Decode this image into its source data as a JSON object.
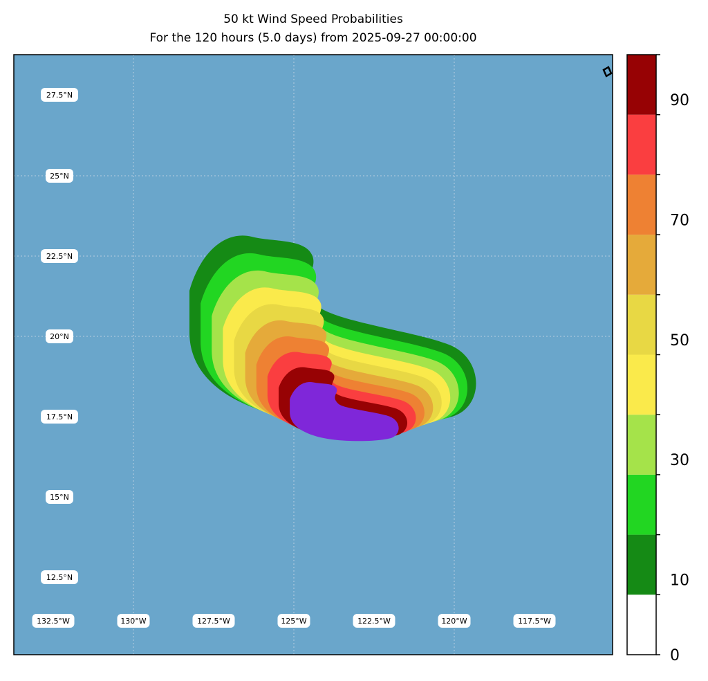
{
  "title": {
    "line1": "50 kt Wind Speed Probabilities",
    "line2": "For the 120 hours (5.0 days) from 2025-09-27 00:00:00"
  },
  "map": {
    "ocean_color": "#6aa6cb",
    "lat_labels": [
      "27.5°N",
      "25°N",
      "22.5°N",
      "20°N",
      "17.5°N",
      "15°N",
      "12.5°N"
    ],
    "lon_labels": [
      "132.5°W",
      "130°W",
      "127.5°W",
      "125°W",
      "122.5°W",
      "120°W",
      "117.5°W"
    ],
    "gridline_lons": [
      "130°W",
      "127.5°W",
      "125°W",
      "120°W"
    ],
    "gridline_lats": [
      "25°N",
      "22.5°N",
      "20°N"
    ]
  },
  "colorbar": {
    "levels": [
      0,
      10,
      20,
      30,
      40,
      50,
      60,
      70,
      80,
      90,
      100
    ],
    "colors": [
      "#ffffff",
      "#158a15",
      "#22d622",
      "#a5e34a",
      "#faea4b",
      "#e8d844",
      "#e5aa3a",
      "#ee8133",
      "#fa3e40",
      "#970204",
      "#7f27d9"
    ],
    "tick_labels": [
      "0",
      "10",
      "30",
      "50",
      "70",
      "90"
    ]
  },
  "probability_contours": [
    {
      "level": 5,
      "color": "#158a15"
    },
    {
      "level": 10,
      "color": "#22d622"
    },
    {
      "level": 20,
      "color": "#a5e34a"
    },
    {
      "level": 30,
      "color": "#faea4b"
    },
    {
      "level": 40,
      "color": "#e8d844"
    },
    {
      "level": 50,
      "color": "#e5aa3a"
    },
    {
      "level": 60,
      "color": "#ee8133"
    },
    {
      "level": 70,
      "color": "#fa3e40"
    },
    {
      "level": 80,
      "color": "#970204"
    },
    {
      "level": 90,
      "color": "#7f27d9"
    }
  ]
}
